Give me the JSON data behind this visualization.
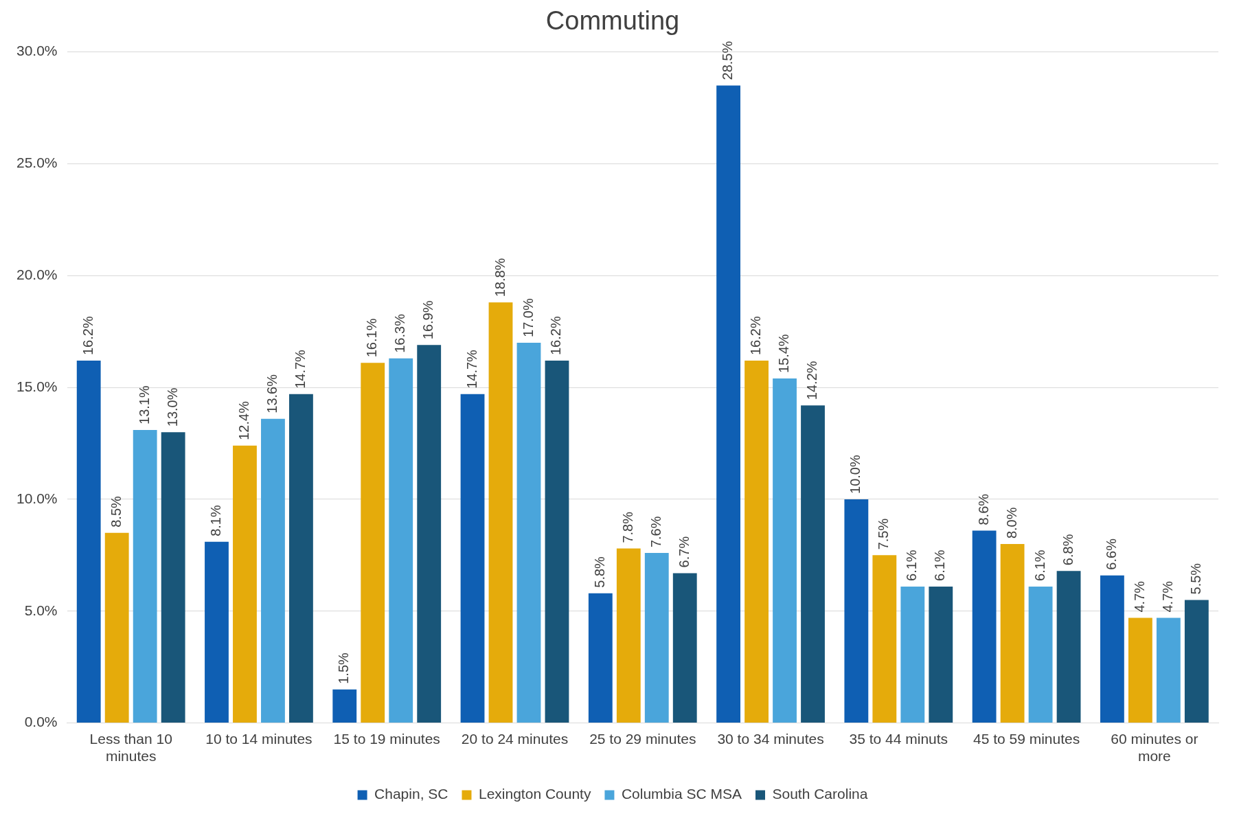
{
  "chart_data": {
    "type": "bar",
    "title": "Commuting",
    "categories": [
      "Less than 10 minutes",
      "10 to 14 minutes",
      "15 to 19 minutes",
      "20 to 24 minutes",
      "25 to 29 minutes",
      "30 to 34 minutes",
      "35 to 44 minuts",
      "45 to 59 minutes",
      "60 minutes or more"
    ],
    "series": [
      {
        "name": "Chapin, SC",
        "color": "#0f5fb3",
        "values": [
          16.2,
          8.1,
          1.5,
          14.7,
          5.8,
          28.5,
          10.0,
          8.6,
          6.6
        ],
        "value_labels": [
          "16.2%",
          "8.1%",
          "1.5%",
          "14.7%",
          "5.8%",
          "28.5%",
          "10.0%",
          "8.6%",
          "6.6%"
        ]
      },
      {
        "name": "Lexington County",
        "color": "#e5ab0b",
        "values": [
          8.5,
          12.4,
          16.1,
          18.8,
          7.8,
          16.2,
          7.5,
          8.0,
          4.7
        ],
        "value_labels": [
          "8.5%",
          "12.4%",
          "16.1%",
          "18.8%",
          "7.8%",
          "16.2%",
          "7.5%",
          "8.0%",
          "4.7%"
        ]
      },
      {
        "name": "Columbia SC MSA",
        "color": "#4aa5db",
        "values": [
          13.1,
          13.6,
          16.3,
          17.0,
          7.6,
          15.4,
          6.1,
          6.1,
          4.7
        ],
        "value_labels": [
          "13.1%",
          "13.6%",
          "16.3%",
          "17.0%",
          "7.6%",
          "15.4%",
          "6.1%",
          "6.1%",
          "4.7%"
        ]
      },
      {
        "name": "South Carolina",
        "color": "#195679",
        "values": [
          13.0,
          14.7,
          16.9,
          16.2,
          6.7,
          14.2,
          6.1,
          6.8,
          5.5
        ],
        "value_labels": [
          "13.0%",
          "14.7%",
          "16.9%",
          "16.2%",
          "6.7%",
          "14.2%",
          "6.1%",
          "6.8%",
          "5.5%"
        ]
      }
    ],
    "ylim": [
      0,
      30
    ],
    "yticks": [
      {
        "value": 0,
        "label": "0.0%"
      },
      {
        "value": 5,
        "label": "5.0%"
      },
      {
        "value": 10,
        "label": "10.0%"
      },
      {
        "value": 15,
        "label": "15.0%"
      },
      {
        "value": 20,
        "label": "20.0%"
      },
      {
        "value": 25,
        "label": "25.0%"
      },
      {
        "value": 30,
        "label": "30.0%"
      }
    ],
    "grid": "y",
    "legend": "bottom"
  }
}
